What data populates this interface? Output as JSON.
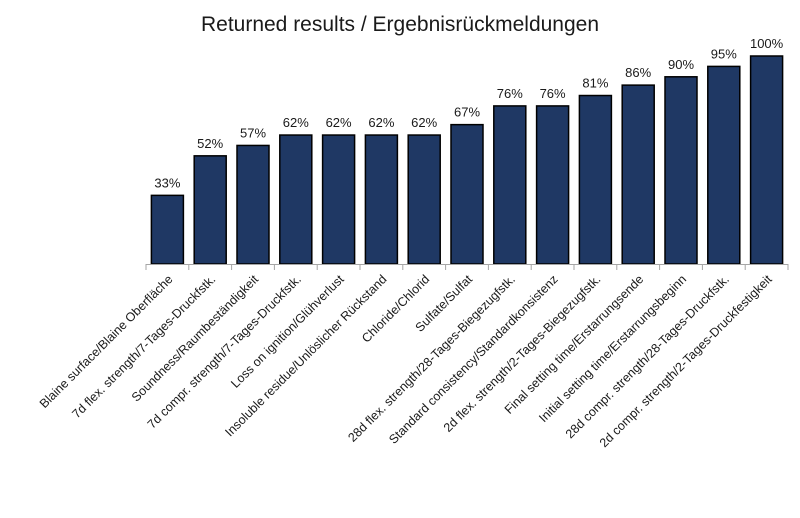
{
  "chart_data": {
    "type": "bar",
    "title": "Returned results / Ergebnisrückmeldungen",
    "xlabel": "",
    "ylabel": "",
    "ylim": [
      0,
      100
    ],
    "grid": false,
    "legend": "none",
    "bar_color": "#1f3864",
    "categories": [
      "Blaine surface/Blaine Oberfläche",
      "7d flex. strength/7-Tages-Druckfstk.",
      "Soundness/Raumbeständigkeit",
      "7d compr. strength/7-Tages-Druckfstk.",
      "Loss on ignition/Glühverlust",
      "Insoluble residue/Unlöslicher Rückstand",
      "Chloride/Chlorid",
      "Sulfate/Sulfat",
      "28d flex. strength/28-Tages-Biegezugfstk.",
      "Standard consistency/Standardkonsistenz",
      "2d flex. strength/2-Tages-Biegezugfstk.",
      "Final setting time/Erstarrungsende",
      "Initial setting time/Erstarrungsbeginn",
      "28d compr. strength/28-Tages-Druckfstk.",
      "2d compr. strength/2-Tages-Druckfestigkeit"
    ],
    "values": [
      33,
      52,
      57,
      62,
      62,
      62,
      62,
      67,
      76,
      76,
      81,
      86,
      90,
      95,
      100
    ],
    "value_labels": [
      "33%",
      "52%",
      "57%",
      "62%",
      "62%",
      "62%",
      "62%",
      "67%",
      "76%",
      "76%",
      "81%",
      "86%",
      "90%",
      "95%",
      "100%"
    ]
  }
}
